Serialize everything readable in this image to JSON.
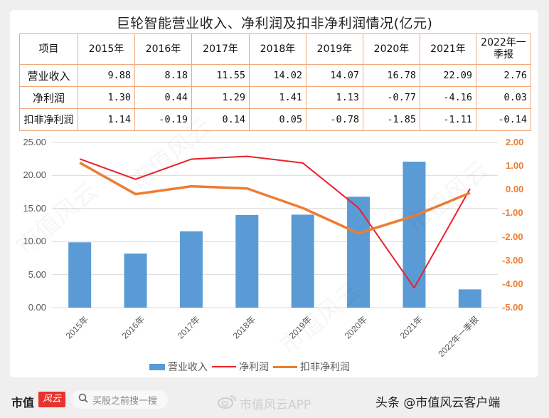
{
  "title": "巨轮智能营业收入、净利润及扣非净利润情况(亿元)",
  "table": {
    "header": [
      "项目",
      "2015年",
      "2016年",
      "2017年",
      "2018年",
      "2019年",
      "2020年",
      "2021年",
      "2022年一季报"
    ],
    "header_last_line1": "2022年一",
    "header_last_line2": "季报",
    "rows": [
      {
        "label": "营业收入",
        "values": [
          "9.88",
          "8.18",
          "11.55",
          "14.02",
          "14.07",
          "16.78",
          "22.09",
          "2.76"
        ]
      },
      {
        "label": "净利润",
        "values": [
          "1.30",
          "0.44",
          "1.29",
          "1.41",
          "1.13",
          "-0.77",
          "-4.16",
          "0.03"
        ]
      },
      {
        "label": "扣非净利润",
        "values": [
          "1.14",
          "-0.19",
          "0.14",
          "0.05",
          "-0.78",
          "-1.85",
          "-1.11",
          "-0.14"
        ]
      }
    ],
    "border_color": "#f0a97a"
  },
  "chart_data": {
    "type": "bar",
    "title": "巨轮智能营业收入、净利润及扣非净利润情况(亿元)",
    "categories": [
      "2015年",
      "2016年",
      "2017年",
      "2018年",
      "2019年",
      "2020年",
      "2021年",
      "2022年一季报"
    ],
    "series": [
      {
        "name": "营业收入",
        "type": "bar",
        "axis": "left",
        "color": "#5b9bd5",
        "values": [
          9.88,
          8.18,
          11.55,
          14.02,
          14.07,
          16.78,
          22.09,
          2.76
        ]
      },
      {
        "name": "净利润",
        "type": "line",
        "axis": "right",
        "color": "#e8222b",
        "values": [
          1.3,
          0.44,
          1.29,
          1.41,
          1.13,
          -0.77,
          -4.16,
          0.03
        ]
      },
      {
        "name": "扣非净利润",
        "type": "line",
        "axis": "right",
        "color": "#ed7d31",
        "values": [
          1.14,
          -0.19,
          0.14,
          0.05,
          -0.78,
          -1.85,
          -1.11,
          -0.14
        ]
      }
    ],
    "left_axis": {
      "ylim": [
        0,
        25
      ],
      "ticks": [
        "25.00",
        "20.00",
        "15.00",
        "10.00",
        "5.00",
        "0.00"
      ]
    },
    "right_axis": {
      "ylim": [
        -5,
        2
      ],
      "ticks": [
        "2.00",
        "1.00",
        "0.00",
        "-1.00",
        "-2.00",
        "-3.00",
        "-4.00",
        "-5.00"
      ],
      "color": "#ed7d31"
    },
    "xlabel": "",
    "ylabel": "",
    "grid": true,
    "legend_position": "bottom"
  },
  "legend": {
    "items": [
      {
        "label": "营业收入",
        "color": "#5b9bd5"
      },
      {
        "label": "净利润",
        "color": "#e8222b"
      },
      {
        "label": "扣非净利润",
        "color": "#ed7d31"
      }
    ]
  },
  "footer": {
    "logo_text": "市值",
    "logo_badge": "风云",
    "search_placeholder": "买股之前搜一搜",
    "weibo_text": "市值风云APP",
    "toutiao_text": "头条 @市值风云客户端"
  },
  "watermark": "市值风云"
}
